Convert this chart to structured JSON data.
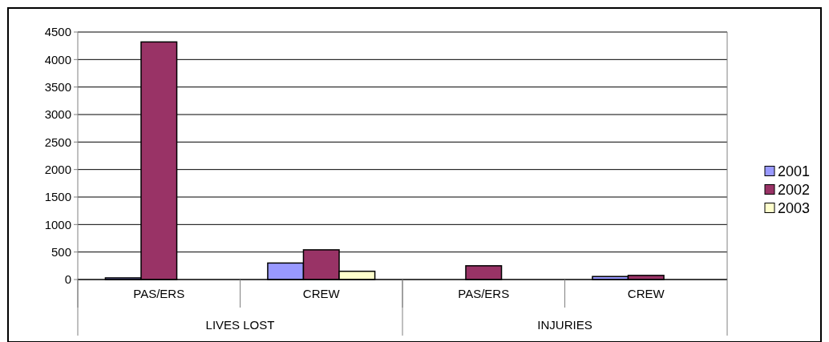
{
  "chart_data": {
    "type": "bar",
    "categories": [
      "PAS/ERS",
      "CREW",
      "PAS/ERS",
      "CREW"
    ],
    "annotations": [
      "LIVES LOST",
      "INJURIES"
    ],
    "series": [
      {
        "name": "2001",
        "color": "#9999ff",
        "values": [
          30,
          300,
          0,
          55
        ]
      },
      {
        "name": "2002",
        "color": "#993366",
        "values": [
          4320,
          540,
          250,
          75
        ]
      },
      {
        "name": "2003",
        "color": "#ffffcc",
        "values": [
          0,
          150,
          0,
          0
        ]
      }
    ],
    "ylim": [
      0,
      4500
    ],
    "yticks": [
      0,
      500,
      1000,
      1500,
      2000,
      2500,
      3000,
      3500,
      4000,
      4500
    ],
    "grid": "y",
    "legend": "right"
  }
}
